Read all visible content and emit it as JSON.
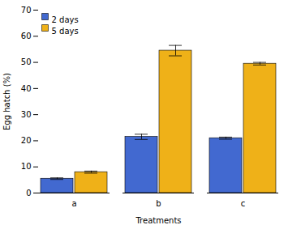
{
  "chart_data": {
    "type": "bar",
    "xlabel": "Treatments",
    "ylabel": "Egg hatch (%)",
    "categories": [
      "a",
      "b",
      "c"
    ],
    "series": [
      {
        "name": "2 days",
        "values": [
          5.5,
          21.5,
          21.0
        ],
        "errors": [
          0.3,
          1.0,
          0.4
        ]
      },
      {
        "name": "5 days",
        "values": [
          8.0,
          54.5,
          49.5
        ],
        "errors": [
          0.4,
          2.0,
          0.5
        ]
      }
    ],
    "ylim": [
      0,
      70
    ],
    "yticks": [
      0,
      10,
      20,
      30,
      40,
      50,
      60,
      70
    ],
    "legend": "upper left"
  }
}
